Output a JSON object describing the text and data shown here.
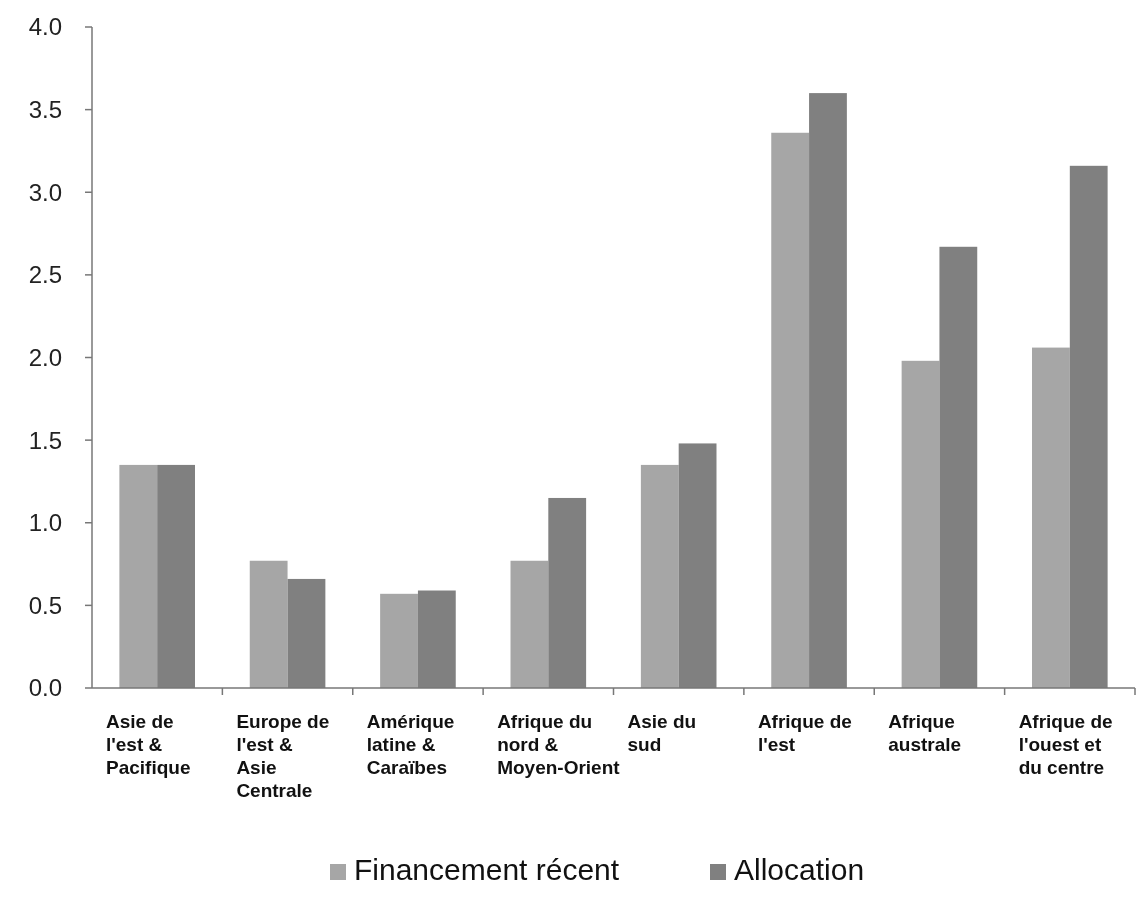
{
  "chart_data": {
    "type": "bar",
    "categories": [
      "Asie de l'est & Pacifique",
      "Europe de l'est & Asie Centrale",
      "Amérique latine & Caraïbes",
      "Afrique du nord & Moyen-Orient",
      "Asie du sud",
      "Afrique de l'est",
      "Afrique australe",
      "Afrique de l'ouest et du centre"
    ],
    "series": [
      {
        "name": "Financement récent",
        "color": "#a6a6a6",
        "values": [
          1.35,
          0.77,
          0.57,
          0.77,
          1.35,
          3.36,
          1.98,
          2.06
        ]
      },
      {
        "name": "Allocation",
        "color": "#808080",
        "values": [
          1.35,
          0.66,
          0.59,
          1.15,
          1.48,
          3.6,
          2.67,
          3.16
        ]
      }
    ],
    "ylim": [
      0,
      4
    ],
    "yticks": [
      {
        "value": 0,
        "label": "0.0"
      },
      {
        "value": 0.5,
        "label": "0.5"
      },
      {
        "value": 1,
        "label": "1.0"
      },
      {
        "value": 1.5,
        "label": "1.5"
      },
      {
        "value": 2,
        "label": "2.0"
      },
      {
        "value": 2.5,
        "label": "2.5"
      },
      {
        "value": 3,
        "label": "3.0"
      },
      {
        "value": 3.5,
        "label": "3.5"
      },
      {
        "value": 4,
        "label": "4.0"
      }
    ],
    "grid": false,
    "legend": "bottom"
  }
}
